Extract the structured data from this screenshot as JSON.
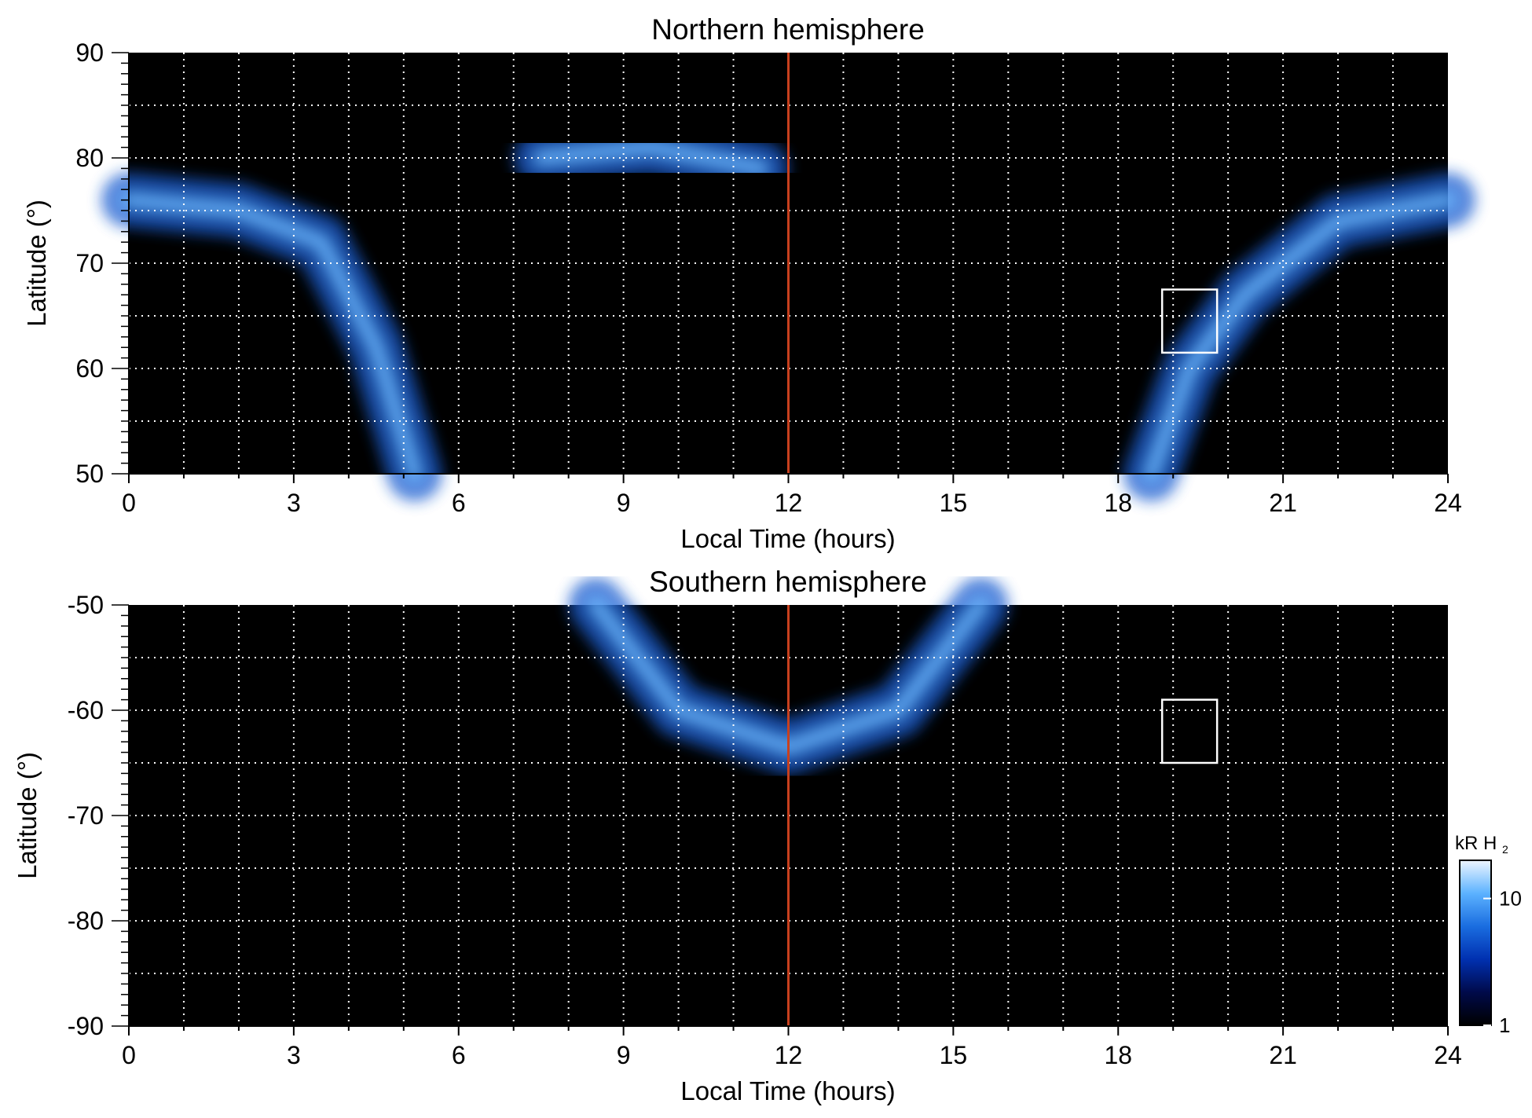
{
  "chart_data": [
    {
      "type": "heatmap",
      "title": "Northern hemisphere",
      "xlabel": "Local Time (hours)",
      "ylabel": "Latitude (°)",
      "xlim": [
        0,
        24
      ],
      "ylim": [
        50,
        90
      ],
      "xticks": [
        0,
        3,
        6,
        9,
        12,
        15,
        18,
        21,
        24
      ],
      "xtick_labels": [
        "0",
        "3",
        "6",
        "9",
        "12",
        "15",
        "18",
        "21",
        "24"
      ],
      "yticks": [
        50,
        60,
        70,
        80,
        90
      ],
      "ytick_labels": [
        "50",
        "60",
        "70",
        "80",
        "90"
      ],
      "x_gridlines": [
        1,
        2,
        3,
        4,
        5,
        6,
        7,
        8,
        9,
        10,
        11,
        12,
        13,
        14,
        15,
        16,
        17,
        18,
        19,
        20,
        21,
        22,
        23
      ],
      "y_gridlines": [
        55,
        60,
        65,
        70,
        75,
        80,
        85
      ],
      "grid": true,
      "marker_line_x": 12,
      "marker_line_color": "#c8401e",
      "box": {
        "x": [
          18.8,
          19.8
        ],
        "y": [
          61.5,
          67.5
        ]
      },
      "emission_bands": [
        {
          "name": "dawn oval",
          "points": [
            [
              0,
              76
            ],
            [
              2,
              75
            ],
            [
              3.5,
              72
            ],
            [
              4.5,
              62
            ],
            [
              5.2,
              50
            ]
          ]
        },
        {
          "name": "dusk oval",
          "points": [
            [
              18.6,
              50
            ],
            [
              19.3,
              60
            ],
            [
              20.3,
              67
            ],
            [
              22,
              74
            ],
            [
              24,
              76
            ]
          ]
        },
        {
          "name": "high-latitude arc",
          "points": [
            [
              7.5,
              80
            ],
            [
              9.5,
              81
            ],
            [
              11.5,
              79
            ]
          ]
        }
      ]
    },
    {
      "type": "heatmap",
      "title": "Southern hemisphere",
      "xlabel": "Local Time (hours)",
      "ylabel": "Latitude (°)",
      "xlim": [
        0,
        24
      ],
      "ylim": [
        -90,
        -50
      ],
      "xticks": [
        0,
        3,
        6,
        9,
        12,
        15,
        18,
        21,
        24
      ],
      "xtick_labels": [
        "0",
        "3",
        "6",
        "9",
        "12",
        "15",
        "18",
        "21",
        "24"
      ],
      "yticks": [
        -90,
        -80,
        -70,
        -60,
        -50
      ],
      "ytick_labels": [
        "-90",
        "-80",
        "-70",
        "-60",
        "-50"
      ],
      "x_gridlines": [
        1,
        2,
        3,
        4,
        5,
        6,
        7,
        8,
        9,
        10,
        11,
        12,
        13,
        14,
        15,
        16,
        17,
        18,
        19,
        20,
        21,
        22,
        23
      ],
      "y_gridlines": [
        -85,
        -80,
        -75,
        -70,
        -65,
        -60,
        -55
      ],
      "grid": true,
      "marker_line_x": 12,
      "marker_line_color": "#c8401e",
      "box": {
        "x": [
          18.8,
          19.8
        ],
        "y": [
          -65,
          -59
        ]
      },
      "emission_bands": [
        {
          "name": "southern oval",
          "points": [
            [
              8.5,
              -50
            ],
            [
              10,
              -60
            ],
            [
              12,
              -63.5
            ],
            [
              14,
              -60
            ],
            [
              15.5,
              -50
            ]
          ]
        }
      ]
    }
  ],
  "colorbar": {
    "label_main": "kR H",
    "label_sub": "2",
    "scale": "log",
    "range": [
      1,
      20
    ],
    "ticks": [
      1,
      10
    ],
    "tick_labels": [
      "1",
      "10"
    ],
    "colors": [
      "#000000",
      "#000a4a",
      "#0030b0",
      "#1a6de0",
      "#5cb2ff",
      "#eef6ff"
    ]
  },
  "colors": {
    "background": "#000000",
    "grid": "#ffffff",
    "box": "#ffffff"
  }
}
